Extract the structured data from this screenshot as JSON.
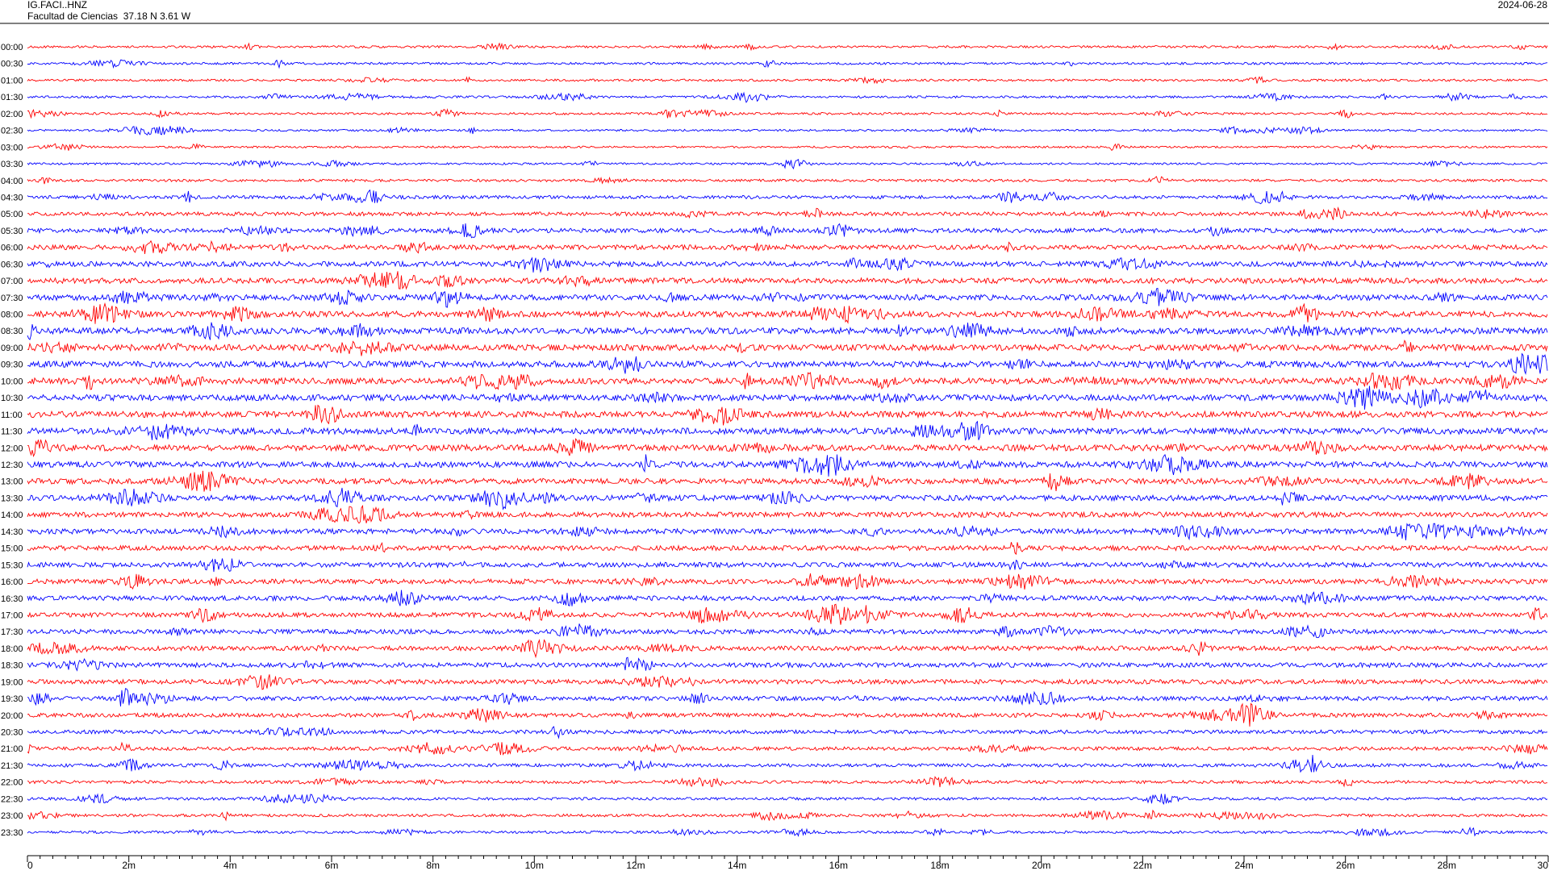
{
  "header": {
    "station": "IG.FACI..HNZ",
    "location": "Facultad de Ciencias  37.18 N 3.61 W",
    "date": "2024-06-28"
  },
  "colors": {
    "odd": "#ff0000",
    "even": "#0000ff",
    "frame": "#000000"
  },
  "chart_data": {
    "type": "line",
    "title": "",
    "row_labels": [
      "00:00",
      "00:30",
      "01:00",
      "01:30",
      "02:00",
      "02:30",
      "03:00",
      "03:30",
      "04:00",
      "04:30",
      "05:00",
      "05:30",
      "06:00",
      "06:30",
      "07:00",
      "07:30",
      "08:00",
      "08:30",
      "09:00",
      "09:30",
      "10:00",
      "10:30",
      "11:00",
      "11:30",
      "12:00",
      "12:30",
      "13:00",
      "13:30",
      "14:00",
      "14:30",
      "15:00",
      "15:30",
      "16:00",
      "16:30",
      "17:00",
      "17:30",
      "18:00",
      "18:30",
      "19:00",
      "19:30",
      "20:00",
      "20:30",
      "21:00",
      "21:30",
      "22:00",
      "22:30",
      "23:00",
      "23:30"
    ],
    "row_noise_level": [
      0.25,
      0.25,
      0.25,
      0.25,
      0.25,
      0.2,
      0.2,
      0.2,
      0.3,
      0.45,
      0.55,
      0.65,
      0.75,
      0.8,
      0.85,
      0.9,
      0.95,
      1.0,
      1.0,
      1.0,
      1.0,
      1.0,
      1.0,
      1.0,
      1.0,
      0.95,
      0.9,
      0.85,
      0.8,
      0.8,
      0.75,
      0.75,
      0.75,
      0.75,
      0.7,
      0.7,
      0.7,
      0.7,
      0.7,
      0.65,
      0.6,
      0.55,
      0.5,
      0.45,
      0.4,
      0.35,
      0.35,
      0.3
    ],
    "x_ticks": [
      "0",
      "2m",
      "4m",
      "6m",
      "8m",
      "10m",
      "12m",
      "14m",
      "16m",
      "18m",
      "20m",
      "22m",
      "24m",
      "26m",
      "28m",
      "30"
    ],
    "xlim": [
      0,
      30
    ]
  }
}
